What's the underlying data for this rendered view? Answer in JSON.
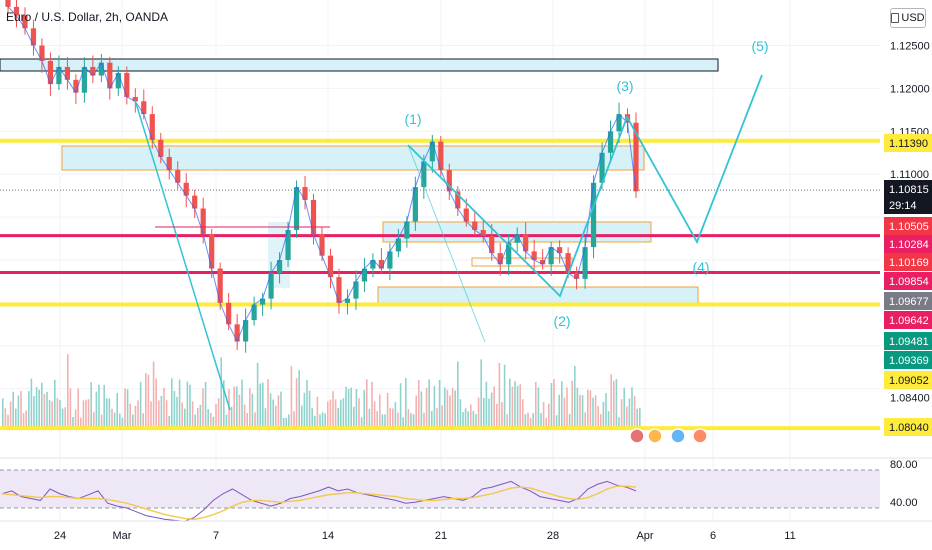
{
  "title": "Euro / U.S. Dollar, 2h, OANDA",
  "currency_button": "USD",
  "colors": {
    "up": "#26a69a",
    "down": "#ef5350",
    "yellow": "#ffeb3b",
    "pink": "#e91e63",
    "wave": "#33c3d6",
    "zone_fill": "#d6f1f7",
    "zone_border": "#f0a23a",
    "rsi_line": "#7e57c2",
    "rsi_ma": "#f2c94c",
    "rsi_band": "#ede7f6"
  },
  "chart_data": [
    {
      "type": "candlestick",
      "y_axis_ticks": [
        "1.12500",
        "1.12000",
        "1.11500",
        "1.11000",
        "1.08400"
      ],
      "x_axis_ticks": [
        "24",
        "Mar",
        "7",
        "14",
        "21",
        "28",
        "Apr",
        "6",
        "11"
      ],
      "ylim": [
        1.078,
        1.13
      ],
      "price_labels": [
        {
          "text": "1.11390",
          "style": "yellow"
        },
        {
          "text": "1.10815",
          "style": "dark"
        },
        {
          "text": "29:14",
          "style": "dark"
        },
        {
          "text": "1.10505",
          "style": "red"
        },
        {
          "text": "1.10284",
          "style": "pink"
        },
        {
          "text": "1.10169",
          "style": "red"
        },
        {
          "text": "1.09854",
          "style": "pink"
        },
        {
          "text": "1.09677",
          "style": "gray"
        },
        {
          "text": "1.09642",
          "style": "pink"
        },
        {
          "text": "1.09481",
          "style": "green"
        },
        {
          "text": "1.09369",
          "style": "green"
        },
        {
          "text": "1.09052",
          "style": "yellow"
        },
        {
          "text": "1.08040",
          "style": "yellow"
        }
      ],
      "horizontal_levels": [
        {
          "price": 1.1139,
          "color": "yellow"
        },
        {
          "price": 1.10284,
          "color": "pink"
        },
        {
          "price": 1.09854,
          "color": "pink"
        },
        {
          "price": 1.09481,
          "color": "yellow"
        },
        {
          "price": 1.0804,
          "color": "yellow"
        }
      ],
      "wave_labels": [
        "(1)",
        "(2)",
        "(3)",
        "(4)",
        "(5)"
      ],
      "series": [
        {
          "values": [
            1.1295,
            1.1285,
            1.127,
            1.125,
            1.1232,
            1.1205,
            1.1225,
            1.121,
            1.1195,
            1.1225,
            1.1215,
            1.123,
            1.12,
            1.1218,
            1.119,
            1.1185,
            1.117,
            1.114,
            1.112,
            1.1105,
            1.109,
            1.1075,
            1.106,
            1.103,
            1.099,
            1.095,
            1.0925,
            1.0905,
            1.093,
            1.0948,
            1.0955,
            1.0985,
            1.1,
            1.1035,
            1.1085,
            1.107,
            1.103,
            1.1005,
            1.098,
            1.095,
            1.0955,
            1.0975,
            1.099,
            1.1,
            1.099,
            1.101,
            1.1025,
            1.1045,
            1.1085,
            1.1115,
            1.1138,
            1.1105,
            1.108,
            1.106,
            1.1045,
            1.1035,
            1.1028,
            1.1008,
            1.0995,
            1.102,
            1.103,
            1.101,
            1.1,
            1.0995,
            1.1015,
            1.1008,
            1.0985,
            1.0978,
            1.1015,
            1.109,
            1.1125,
            1.115,
            1.117,
            1.116,
            1.108
          ]
        }
      ]
    },
    {
      "type": "bar",
      "name": "volume"
    },
    {
      "type": "line",
      "name": "rsi",
      "y_axis_ticks": [
        "80.00",
        "40.00"
      ],
      "ylim": [
        20,
        90
      ],
      "series": [
        {
          "values": [
            55,
            58,
            52,
            50,
            48,
            60,
            55,
            52,
            50,
            54,
            58,
            45,
            42,
            40,
            36,
            32,
            30,
            28,
            27,
            26,
            30,
            38,
            48,
            55,
            60,
            54,
            48,
            45,
            42,
            45,
            50,
            52,
            55,
            58,
            62,
            58,
            60,
            56,
            54,
            52,
            50,
            48,
            45,
            46,
            48,
            50,
            52,
            50,
            48,
            52,
            60,
            62,
            65,
            68,
            62,
            58,
            52,
            50,
            48,
            46,
            50,
            60,
            65,
            68,
            64,
            62,
            58
          ]
        },
        {
          "values": [
            55,
            54,
            53,
            52,
            51,
            52,
            52,
            51,
            50,
            50,
            50,
            49,
            47,
            45,
            42,
            39,
            36,
            33,
            31,
            29,
            28,
            30,
            33,
            37,
            42,
            46,
            48,
            48,
            47,
            46,
            47,
            48,
            50,
            52,
            54,
            55,
            56,
            56,
            55,
            54,
            53,
            52,
            50,
            49,
            48,
            48,
            49,
            50,
            50,
            51,
            53,
            55,
            58,
            61,
            62,
            61,
            58,
            55,
            52,
            50,
            49,
            51,
            55,
            60,
            63,
            63,
            62
          ]
        }
      ]
    }
  ]
}
